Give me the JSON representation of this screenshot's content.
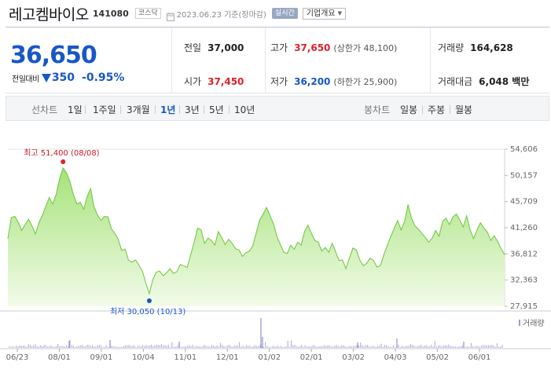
{
  "header": {
    "stock_name": "레고켐바이오",
    "stock_code": "141080",
    "market": "코스닥",
    "date_text": "2023.06.23 기준(장마감)",
    "realtime_label": "실시간",
    "company_button": "기업개요"
  },
  "summary": {
    "current_price": "36,650",
    "change_label": "전일대비",
    "change_value": "350",
    "change_percent": "-0.95%",
    "rows": [
      [
        {
          "label": "전일",
          "value": "37,000",
          "color": "black"
        },
        {
          "label": "고가",
          "value": "37,650",
          "color": "red",
          "sub": "(상한가 48,100)"
        },
        {
          "label": "거래량",
          "value": "164,628",
          "color": "black"
        }
      ],
      [
        {
          "label": "시가",
          "value": "37,450",
          "color": "red"
        },
        {
          "label": "저가",
          "value": "36,200",
          "color": "blue",
          "sub": "(하한가 25,900)"
        },
        {
          "label": "거래대금",
          "value": "6,048 백만",
          "color": "black"
        }
      ]
    ]
  },
  "period_bar": {
    "line_label": "선차트",
    "periods": [
      "1일",
      "1주일",
      "3개월",
      "1년",
      "3년",
      "5년",
      "10년"
    ],
    "active_period": "1년",
    "candle_label": "봉차트",
    "candles": [
      "일봉",
      "주봉",
      "월봉"
    ]
  },
  "chart_data": {
    "type": "area",
    "y_ticks": [
      "54,606",
      "50,157",
      "45,709",
      "41,260",
      "36,812",
      "32,363",
      "27,915"
    ],
    "ylim": [
      27915,
      54606
    ],
    "x_ticks": [
      "06/23",
      "08/01",
      "09/01",
      "10/04",
      "11/01",
      "12/01",
      "01/02",
      "02/01",
      "03/02",
      "04/03",
      "05/02",
      "06/01"
    ],
    "high_annotation": "최고 51,400 (08/08)",
    "low_annotation": "최저 30,050 (10/13)",
    "volume_label": "거래량",
    "series": [
      {
        "name": "",
        "values": [
          39400,
          43000,
          43200,
          42200,
          40800,
          41800,
          42700,
          41600,
          40200,
          42100,
          43400,
          44900,
          46400,
          45300,
          46900,
          49600,
          51400,
          50600,
          49100,
          46900,
          45300,
          45600,
          44400,
          46600,
          47900,
          44800,
          43400,
          42500,
          43200,
          43100,
          41100,
          40300,
          39300,
          37400,
          37600,
          35700,
          35400,
          35800,
          34900,
          33900,
          31800,
          30050,
          32400,
          33700,
          33900,
          33100,
          33600,
          34300,
          33500,
          33800,
          35000,
          34800,
          34500,
          36700,
          38800,
          41200,
          40900,
          38600,
          39500,
          39100,
          38300,
          40600,
          39600,
          38400,
          39300,
          38600,
          37700,
          37500,
          36400,
          37000,
          37300,
          38200,
          40400,
          42600,
          43600,
          44700,
          43300,
          41900,
          39800,
          38400,
          37100,
          36900,
          38300,
          37600,
          38800,
          38300,
          40600,
          41700,
          40300,
          39100,
          38800,
          37300,
          37900,
          37100,
          38600,
          37200,
          35700,
          35800,
          34300,
          36100,
          37800,
          37500,
          35800,
          34800,
          35200,
          36100,
          35700,
          34600,
          34800,
          36700,
          38300,
          39800,
          41200,
          42500,
          40900,
          42300,
          45200,
          42900,
          41600,
          41000,
          40300,
          39600,
          38800,
          39500,
          40800,
          39800,
          42300,
          42900,
          41800,
          43100,
          43600,
          42600,
          41400,
          43300,
          40900,
          39400,
          40900,
          42100,
          41200,
          40500,
          39100,
          39900,
          38900,
          37700,
          36650
        ]
      }
    ]
  }
}
